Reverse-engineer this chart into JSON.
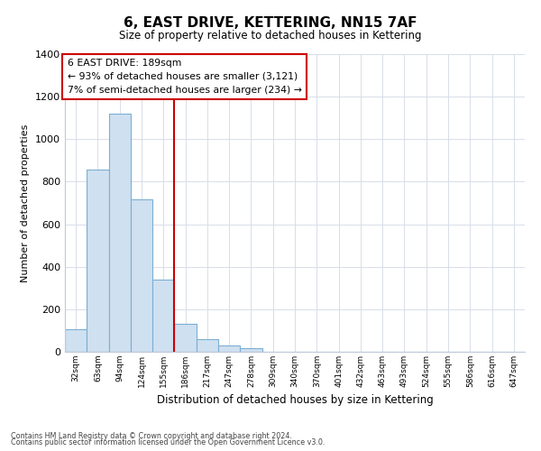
{
  "title": "6, EAST DRIVE, KETTERING, NN15 7AF",
  "subtitle": "Size of property relative to detached houses in Kettering",
  "xlabel": "Distribution of detached houses by size in Kettering",
  "ylabel": "Number of detached properties",
  "bar_values": [
    105,
    855,
    1120,
    715,
    340,
    130,
    60,
    30,
    15,
    0,
    0,
    0,
    0,
    0,
    0,
    0,
    0,
    0,
    0,
    0,
    0
  ],
  "bar_labels": [
    "32sqm",
    "63sqm",
    "94sqm",
    "124sqm",
    "155sqm",
    "186sqm",
    "217sqm",
    "247sqm",
    "278sqm",
    "309sqm",
    "340sqm",
    "370sqm",
    "401sqm",
    "432sqm",
    "463sqm",
    "493sqm",
    "524sqm",
    "555sqm",
    "586sqm",
    "616sqm",
    "647sqm"
  ],
  "bar_color": "#cfe0f0",
  "bar_edge_color": "#7aafd4",
  "vline_color": "#cc0000",
  "annotation_title": "6 EAST DRIVE: 189sqm",
  "annotation_line1": "← 93% of detached houses are smaller (3,121)",
  "annotation_line2": "7% of semi-detached houses are larger (234) →",
  "annotation_box_color": "#ffffff",
  "annotation_box_edge": "#cc0000",
  "ylim": [
    0,
    1400
  ],
  "yticks": [
    0,
    200,
    400,
    600,
    800,
    1000,
    1200,
    1400
  ],
  "footnote1": "Contains HM Land Registry data © Crown copyright and database right 2024.",
  "footnote2": "Contains public sector information licensed under the Open Government Licence v3.0.",
  "background_color": "#ffffff",
  "grid_color": "#d8dde8"
}
